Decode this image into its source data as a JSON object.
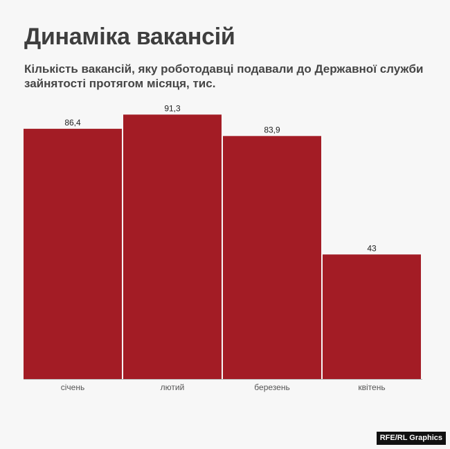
{
  "header": {
    "title": "Динаміка вакансій",
    "subtitle": "Кількість вакансій, яку роботодавці подавали до Державної служби зайнятості протягом місяця, тис."
  },
  "footer": {
    "credit": "RFE/RL Graphics"
  },
  "colors": {
    "bar": "#a31c25",
    "background": "#f7f7f7",
    "axis": "#b5b5b5"
  },
  "chart_data": {
    "type": "bar",
    "categories": [
      "січень",
      "лютий",
      "березень",
      "квітень"
    ],
    "values": [
      86.4,
      91.3,
      83.9,
      43
    ],
    "value_labels": [
      "86,4",
      "91,3",
      "83,9",
      "43"
    ],
    "title": "Динаміка вакансій",
    "subtitle": "Кількість вакансій, яку роботодавці подавали до Державної служби зайнятості протягом місяця, тис.",
    "xlabel": "",
    "ylabel": "",
    "ylim": [
      0,
      100
    ],
    "grid": false,
    "legend": "none"
  }
}
